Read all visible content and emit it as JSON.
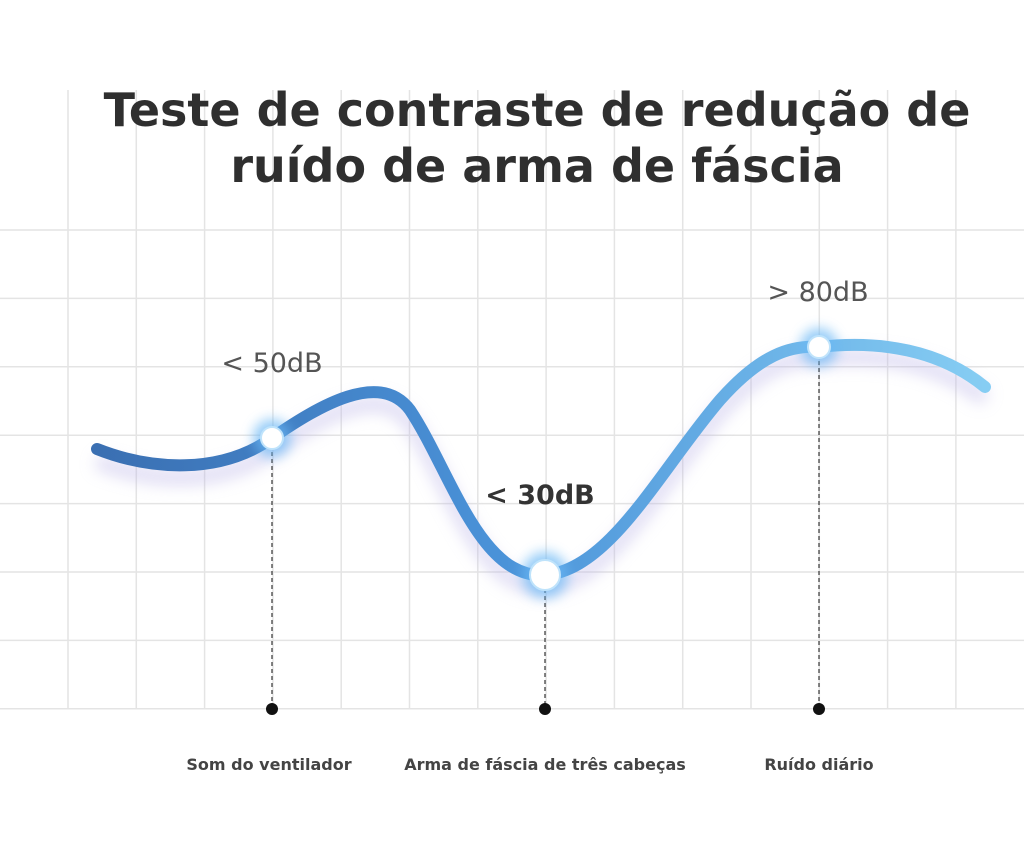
{
  "header": {
    "title_lines": [
      "Teste de contraste de redução de",
      "ruído de arma de fáscia"
    ]
  },
  "points": [
    {
      "label": "< 50dB",
      "category": "Som do ventilador"
    },
    {
      "label": "< 30dB",
      "category": "Arma de fáscia de três cabeças"
    },
    {
      "label": "> 80dB",
      "category": "Ruído diário"
    }
  ]
}
